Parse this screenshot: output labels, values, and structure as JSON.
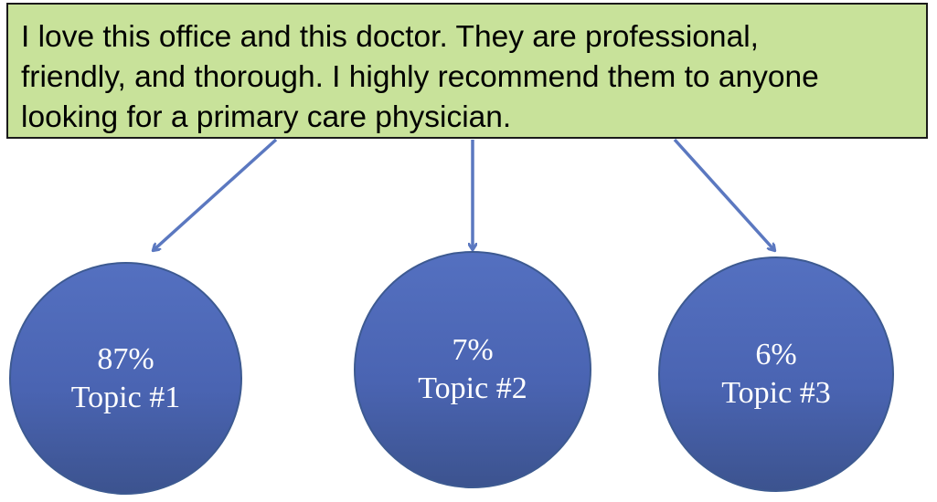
{
  "review": {
    "text": "I love this office and this doctor. They are professional,\nfriendly, and thorough. I highly recommend them to anyone\nlooking for a primary care physician."
  },
  "topics": [
    {
      "percent": "87%",
      "label": "Topic #1",
      "share": 0.87
    },
    {
      "percent": "7%",
      "label": "Topic #2",
      "share": 0.07
    },
    {
      "percent": "6%",
      "label": "Topic #3",
      "share": 0.06
    }
  ],
  "colors": {
    "review_fill": "#c8e29a",
    "circle_fill": "#4a64b2",
    "arrow": "#5b78c0"
  }
}
